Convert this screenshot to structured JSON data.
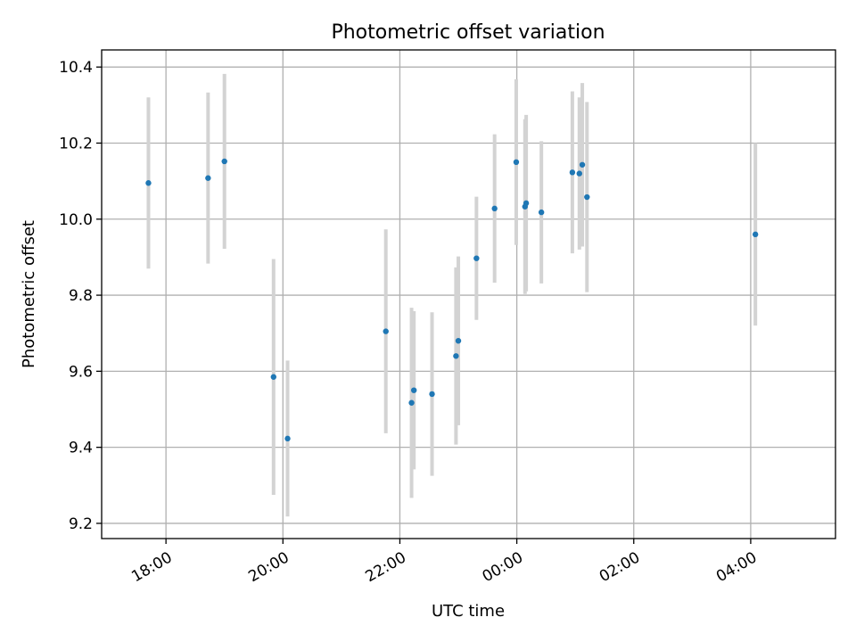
{
  "chart_data": {
    "type": "scatter",
    "title": "Photometric offset variation",
    "xlabel": "UTC time",
    "ylabel": "Photometric offset",
    "x_unit": "hours (UTC)",
    "xlim": [
      16.9,
      29.45
    ],
    "ylim": [
      9.16,
      10.445
    ],
    "x_ticks": [
      {
        "value": 18,
        "label": "18:00"
      },
      {
        "value": 20,
        "label": "20:00"
      },
      {
        "value": 22,
        "label": "22:00"
      },
      {
        "value": 24,
        "label": "00:00"
      },
      {
        "value": 26,
        "label": "02:00"
      },
      {
        "value": 28,
        "label": "04:00"
      }
    ],
    "y_ticks": [
      {
        "value": 9.2,
        "label": "9.2"
      },
      {
        "value": 9.4,
        "label": "9.4"
      },
      {
        "value": 9.6,
        "label": "9.6"
      },
      {
        "value": 9.8,
        "label": "9.8"
      },
      {
        "value": 10.0,
        "label": "10.0"
      },
      {
        "value": 10.2,
        "label": "10.2"
      },
      {
        "value": 10.4,
        "label": "10.4"
      }
    ],
    "grid": true,
    "marker_color": "#1f77b4",
    "errorbar_color": "#d3d3d3",
    "points": [
      {
        "x": 17.7,
        "y": 10.095,
        "err": 0.225
      },
      {
        "x": 18.72,
        "y": 10.108,
        "err": 0.225
      },
      {
        "x": 19.0,
        "y": 10.152,
        "err": 0.23
      },
      {
        "x": 19.84,
        "y": 9.585,
        "err": 0.31
      },
      {
        "x": 20.08,
        "y": 9.423,
        "err": 0.205
      },
      {
        "x": 21.76,
        "y": 9.705,
        "err": 0.268
      },
      {
        "x": 22.2,
        "y": 9.517,
        "err": 0.25
      },
      {
        "x": 22.24,
        "y": 9.55,
        "err": 0.208
      },
      {
        "x": 22.55,
        "y": 9.54,
        "err": 0.215
      },
      {
        "x": 22.96,
        "y": 9.64,
        "err": 0.233
      },
      {
        "x": 23.0,
        "y": 9.68,
        "err": 0.222
      },
      {
        "x": 23.31,
        "y": 9.897,
        "err": 0.162
      },
      {
        "x": 23.62,
        "y": 10.028,
        "err": 0.195
      },
      {
        "x": 23.99,
        "y": 10.15,
        "err": 0.218
      },
      {
        "x": 24.14,
        "y": 10.033,
        "err": 0.23
      },
      {
        "x": 24.16,
        "y": 10.042,
        "err": 0.232
      },
      {
        "x": 24.42,
        "y": 10.018,
        "err": 0.187
      },
      {
        "x": 24.95,
        "y": 10.123,
        "err": 0.213
      },
      {
        "x": 25.07,
        "y": 10.12,
        "err": 0.2
      },
      {
        "x": 25.12,
        "y": 10.143,
        "err": 0.215
      },
      {
        "x": 25.2,
        "y": 10.058,
        "err": 0.25
      },
      {
        "x": 28.08,
        "y": 9.96,
        "err": 0.24
      }
    ]
  }
}
